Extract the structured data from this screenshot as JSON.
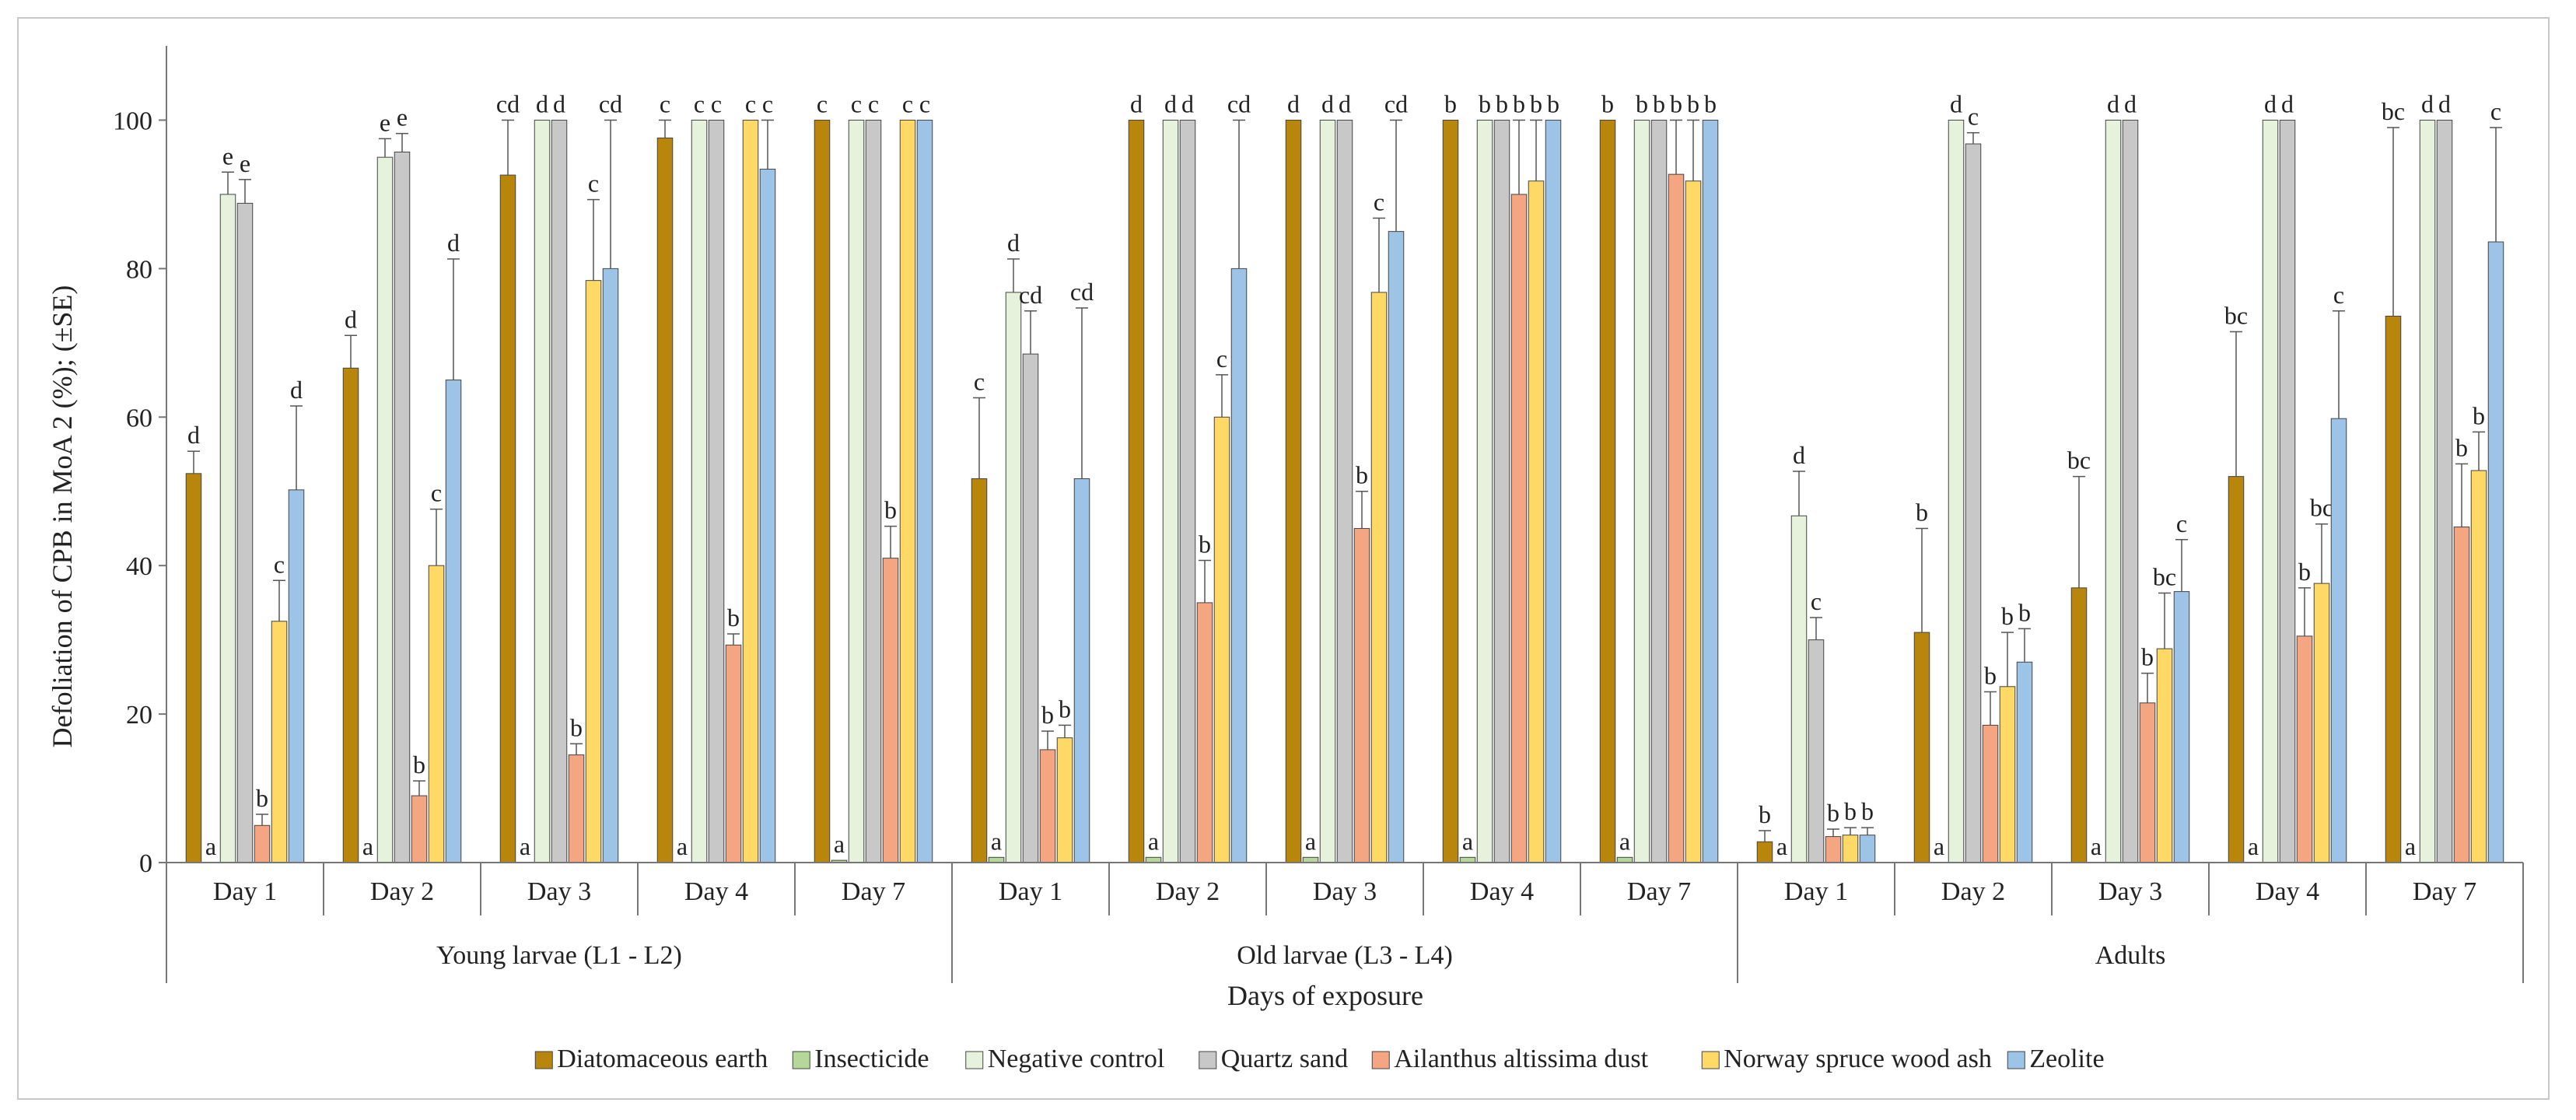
{
  "chart_data": {
    "type": "bar",
    "ylabel": "Defoliation of CPB in MoA 2 (%); (±SE)",
    "xlabel": "Days of exposure",
    "ylim": [
      0,
      110
    ],
    "yticks": [
      0,
      20,
      40,
      60,
      80,
      100
    ],
    "groups": [
      "Young larvae (L1 - L2)",
      "Old larvae (L3 - L4)",
      "Adults"
    ],
    "days": [
      "Day 1",
      "Day 2",
      "Day 3",
      "Day 4",
      "Day 7"
    ],
    "series": [
      {
        "name": "Diatomaceous earth",
        "color": "#b8860b"
      },
      {
        "name": "Insecticide",
        "color": "#b5d89a"
      },
      {
        "name": "Negative control",
        "color": "#e6f2dc"
      },
      {
        "name": "Quartz sand",
        "color": "#c8c8c8"
      },
      {
        "name": "Ailanthus altissima dust",
        "color": "#f4a582"
      },
      {
        "name": "Norway spruce wood ash",
        "color": "#ffd966"
      },
      {
        "name": "Zeolite",
        "color": "#9dc3e6"
      }
    ],
    "clusters": [
      {
        "group": 0,
        "day": "Day 1",
        "values": [
          52.4,
          0,
          90,
          88.8,
          5,
          32.5,
          50.2
        ],
        "errors": [
          3,
          0,
          3,
          3.2,
          1.5,
          5.5,
          11.3
        ],
        "labels": [
          "d",
          "a",
          "e",
          "e",
          "b",
          "c",
          "d"
        ]
      },
      {
        "group": 0,
        "day": "Day 2",
        "values": [
          66.6,
          0,
          95,
          95.7,
          9,
          40,
          65
        ],
        "errors": [
          4.4,
          0,
          2.5,
          2.5,
          2,
          7.6,
          16.3
        ],
        "labels": [
          "d",
          "a",
          "e",
          "e",
          "b",
          "c",
          "d"
        ]
      },
      {
        "group": 0,
        "day": "Day 3",
        "values": [
          92.6,
          0,
          100,
          100,
          14.5,
          78.4,
          80
        ],
        "errors": [
          7.4,
          0,
          0,
          0,
          1.5,
          10.9,
          20
        ],
        "labels": [
          "cd",
          "a",
          "d",
          "d",
          "b",
          "c",
          "cd"
        ]
      },
      {
        "group": 0,
        "day": "Day 4",
        "values": [
          97.6,
          0,
          100,
          100,
          29.3,
          100,
          93.4
        ],
        "errors": [
          2.4,
          0,
          0,
          0,
          1.5,
          0,
          6.6
        ],
        "labels": [
          "c",
          "a",
          "c",
          "c",
          "b",
          "c",
          "c"
        ]
      },
      {
        "group": 0,
        "day": "Day 7",
        "values": [
          100,
          0.3,
          100,
          100,
          41,
          100,
          100
        ],
        "errors": [
          0,
          0,
          0,
          0,
          4.3,
          0,
          0
        ],
        "labels": [
          "c",
          "a",
          "c",
          "c",
          "b",
          "c",
          "c"
        ]
      },
      {
        "group": 1,
        "day": "Day 1",
        "values": [
          51.7,
          0.7,
          76.8,
          68.5,
          15.2,
          16.8,
          51.7
        ],
        "errors": [
          10.9,
          0,
          4.5,
          5.8,
          2.5,
          1.7,
          23
        ],
        "labels": [
          "c",
          "a",
          "d",
          "cd",
          "b",
          "b",
          "cd"
        ]
      },
      {
        "group": 1,
        "day": "Day 2",
        "values": [
          100,
          0.7,
          100,
          100,
          35,
          60,
          80
        ],
        "errors": [
          0,
          0,
          0,
          0,
          5.7,
          5.7,
          20
        ],
        "labels": [
          "d",
          "a",
          "d",
          "d",
          "b",
          "c",
          "cd"
        ]
      },
      {
        "group": 1,
        "day": "Day 3",
        "values": [
          100,
          0.7,
          100,
          100,
          45,
          76.8,
          85
        ],
        "errors": [
          0,
          0,
          0,
          0,
          5,
          10,
          15
        ],
        "labels": [
          "d",
          "a",
          "d",
          "d",
          "b",
          "c",
          "cd"
        ]
      },
      {
        "group": 1,
        "day": "Day 4",
        "values": [
          100,
          0.7,
          100,
          100,
          90,
          91.8,
          100
        ],
        "errors": [
          0,
          0,
          0,
          0,
          10,
          8.2,
          0
        ],
        "labels": [
          "b",
          "a",
          "b",
          "b",
          "b",
          "b",
          "b"
        ]
      },
      {
        "group": 1,
        "day": "Day 7",
        "values": [
          100,
          0.7,
          100,
          100,
          92.7,
          91.8,
          100
        ],
        "errors": [
          0,
          0,
          0,
          0,
          7.3,
          8.2,
          0
        ],
        "labels": [
          "b",
          "a",
          "b",
          "b",
          "b",
          "b",
          "b"
        ]
      },
      {
        "group": 2,
        "day": "Day 1",
        "values": [
          2.8,
          0,
          46.7,
          30,
          3.5,
          3.7,
          3.7
        ],
        "errors": [
          1.5,
          0,
          6,
          3,
          1,
          1,
          1
        ],
        "labels": [
          "b",
          "a",
          "d",
          "c",
          "b",
          "b",
          "b"
        ]
      },
      {
        "group": 2,
        "day": "Day 2",
        "values": [
          31,
          0,
          100,
          96.8,
          18.5,
          23.7,
          27
        ],
        "errors": [
          14,
          0,
          0,
          1.5,
          4.5,
          7.3,
          4.5
        ],
        "labels": [
          "b",
          "a",
          "d",
          "c",
          "b",
          "b",
          "b"
        ]
      },
      {
        "group": 2,
        "day": "Day 3",
        "values": [
          37,
          0,
          100,
          100,
          21.5,
          28.8,
          36.5
        ],
        "errors": [
          15,
          0,
          0,
          0,
          4,
          7.5,
          7
        ],
        "labels": [
          "bc",
          "a",
          "d",
          "d",
          "b",
          "bc",
          "c"
        ]
      },
      {
        "group": 2,
        "day": "Day 4",
        "values": [
          52,
          0,
          100,
          100,
          30.5,
          37.6,
          59.8
        ],
        "errors": [
          19.5,
          0,
          0,
          0,
          6.5,
          8,
          14.5
        ],
        "labels": [
          "bc",
          "a",
          "d",
          "d",
          "b",
          "bc",
          "c"
        ]
      },
      {
        "group": 2,
        "day": "Day 7",
        "values": [
          73.6,
          0,
          100,
          100,
          45.2,
          52.8,
          83.6
        ],
        "errors": [
          25.4,
          0,
          0,
          0,
          8.5,
          5.2,
          15.4
        ],
        "labels": [
          "bc",
          "a",
          "d",
          "d",
          "b",
          "b",
          "c"
        ]
      }
    ]
  }
}
